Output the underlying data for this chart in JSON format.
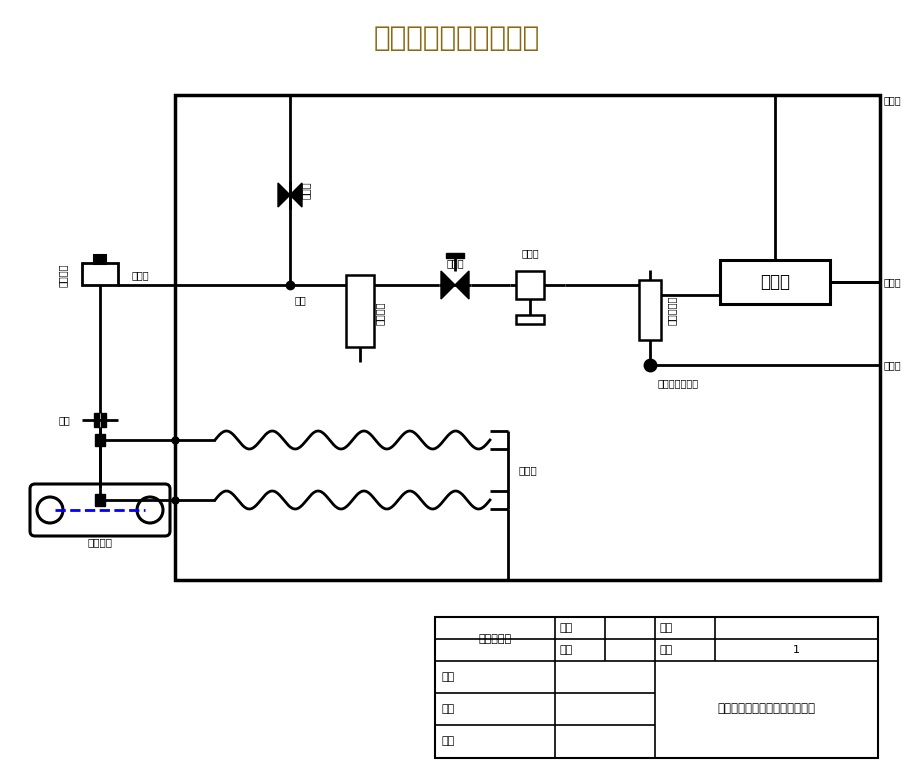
{
  "title": "氢气精制过程分析系统",
  "title_color": "#8B6914",
  "bg_color": "#ffffff",
  "border_color": "#000000",
  "line_color": "#000000",
  "label_color": "#000000",
  "blue_color": "#0000FF",
  "labels": {
    "process_pipe": "工艺管道",
    "ball_valve": "球阀",
    "sample_probe": "取样探头",
    "sample_port": "样气口",
    "three_way": "三通",
    "vent_valve": "放空阀",
    "filter": "聚结滤器",
    "shutoff_valve": "截止阀",
    "pressure_reduce": "减压阀",
    "analyzer": "分析仪",
    "flow_meter": "样气流量计",
    "switch_valve": "样气标气切换阀",
    "vent_port": "放空口",
    "exhaust_port": "排空口",
    "calibrate_port": "标校口",
    "electric_heat": "电伴热",
    "system_diagram": "系统气路图",
    "drawing_number": "图号",
    "scale": "比例",
    "material": "材料",
    "quantity": "数量",
    "design": "设计",
    "draw": "绘图",
    "review": "审阅",
    "company": "西安赢润环保科技集团有限公司",
    "value_1": "1"
  }
}
